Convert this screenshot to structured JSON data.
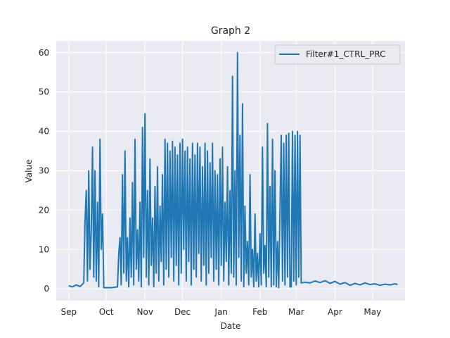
{
  "chart_data": {
    "type": "line",
    "title": "Graph 2",
    "xlabel": "Date",
    "ylabel": "Value",
    "x_tick_labels": [
      "Sep",
      "Oct",
      "Nov",
      "Dec",
      "Jan",
      "Feb",
      "Mar",
      "Apr",
      "May"
    ],
    "x_ticks": [
      "2023-09-01",
      "2023-10-01",
      "2023-11-01",
      "2023-12-01",
      "2024-01-01",
      "2024-02-01",
      "2024-03-01",
      "2024-04-01",
      "2024-05-01"
    ],
    "xlim": [
      "2023-08-22",
      "2024-05-27"
    ],
    "ylim": [
      -3,
      63
    ],
    "y_ticks": [
      0,
      10,
      20,
      30,
      40,
      50,
      60
    ],
    "grid": true,
    "legend_position": "upper right",
    "series": [
      {
        "name": "Filter#1_CTRL_PRC",
        "color": "#1f77b4",
        "points": [
          [
            "2023-09-01",
            0.8
          ],
          [
            "2023-09-04",
            0.5
          ],
          [
            "2023-09-07",
            1.0
          ],
          [
            "2023-09-10",
            0.6
          ],
          [
            "2023-09-13",
            1.5
          ],
          [
            "2023-09-14",
            17
          ],
          [
            "2023-09-15",
            25
          ],
          [
            "2023-09-16",
            2
          ],
          [
            "2023-09-17",
            30
          ],
          [
            "2023-09-18",
            5
          ],
          [
            "2023-09-19",
            15
          ],
          [
            "2023-09-20",
            36
          ],
          [
            "2023-09-21",
            3
          ],
          [
            "2023-09-22",
            30
          ],
          [
            "2023-09-23",
            2
          ],
          [
            "2023-09-24",
            22
          ],
          [
            "2023-09-25",
            0.5
          ],
          [
            "2023-09-26",
            38
          ],
          [
            "2023-09-27",
            10
          ],
          [
            "2023-09-28",
            19
          ],
          [
            "2023-09-29",
            0.3
          ],
          [
            "2023-10-05",
            0.3
          ],
          [
            "2023-10-10",
            0.5
          ],
          [
            "2023-10-11",
            9
          ],
          [
            "2023-10-12",
            13
          ],
          [
            "2023-10-13",
            1
          ],
          [
            "2023-10-14",
            29
          ],
          [
            "2023-10-15",
            4
          ],
          [
            "2023-10-16",
            35
          ],
          [
            "2023-10-17",
            2
          ],
          [
            "2023-10-18",
            13
          ],
          [
            "2023-10-19",
            0.5
          ],
          [
            "2023-10-20",
            18
          ],
          [
            "2023-10-21",
            3
          ],
          [
            "2023-10-22",
            27
          ],
          [
            "2023-10-23",
            1
          ],
          [
            "2023-10-24",
            38
          ],
          [
            "2023-10-25",
            5
          ],
          [
            "2023-10-26",
            15
          ],
          [
            "2023-10-27",
            2
          ],
          [
            "2023-10-28",
            22
          ],
          [
            "2023-10-29",
            0.5
          ],
          [
            "2023-10-30",
            41
          ],
          [
            "2023-10-31",
            8
          ],
          [
            "2023-11-01",
            44.5
          ],
          [
            "2023-11-02",
            3
          ],
          [
            "2023-11-03",
            25
          ],
          [
            "2023-11-04",
            1
          ],
          [
            "2023-11-05",
            33
          ],
          [
            "2023-11-06",
            6
          ],
          [
            "2023-11-07",
            18
          ],
          [
            "2023-11-08",
            0.5
          ],
          [
            "2023-11-09",
            26
          ],
          [
            "2023-11-10",
            4
          ],
          [
            "2023-11-11",
            31
          ],
          [
            "2023-11-12",
            2
          ],
          [
            "2023-11-13",
            21
          ],
          [
            "2023-11-14",
            7
          ],
          [
            "2023-11-15",
            29
          ],
          [
            "2023-11-16",
            1
          ],
          [
            "2023-11-17",
            38
          ],
          [
            "2023-11-18",
            5
          ],
          [
            "2023-11-19",
            37
          ],
          [
            "2023-11-20",
            3
          ],
          [
            "2023-11-21",
            35
          ],
          [
            "2023-11-22",
            8
          ],
          [
            "2023-11-23",
            37.5
          ],
          [
            "2023-11-24",
            2
          ],
          [
            "2023-11-25",
            36
          ],
          [
            "2023-11-26",
            6
          ],
          [
            "2023-11-27",
            34
          ],
          [
            "2023-11-28",
            1
          ],
          [
            "2023-11-29",
            37
          ],
          [
            "2023-11-30",
            4
          ],
          [
            "2023-12-01",
            38
          ],
          [
            "2023-12-02",
            10
          ],
          [
            "2023-12-03",
            35
          ],
          [
            "2023-12-04",
            2
          ],
          [
            "2023-12-05",
            36
          ],
          [
            "2023-12-06",
            7
          ],
          [
            "2023-12-07",
            33
          ],
          [
            "2023-12-08",
            1
          ],
          [
            "2023-12-09",
            37
          ],
          [
            "2023-12-10",
            5
          ],
          [
            "2023-12-11",
            34
          ],
          [
            "2023-12-12",
            3
          ],
          [
            "2023-12-13",
            37
          ],
          [
            "2023-12-14",
            9
          ],
          [
            "2023-12-15",
            36
          ],
          [
            "2023-12-16",
            2
          ],
          [
            "2023-12-17",
            31
          ],
          [
            "2023-12-18",
            6
          ],
          [
            "2023-12-19",
            37
          ],
          [
            "2023-12-20",
            1
          ],
          [
            "2023-12-21",
            35
          ],
          [
            "2023-12-22",
            4
          ],
          [
            "2023-12-23",
            32
          ],
          [
            "2023-12-24",
            8
          ],
          [
            "2023-12-25",
            37
          ],
          [
            "2023-12-26",
            2
          ],
          [
            "2023-12-27",
            30
          ],
          [
            "2023-12-28",
            5
          ],
          [
            "2023-12-29",
            29
          ],
          [
            "2023-12-30",
            1
          ],
          [
            "2023-12-31",
            33
          ],
          [
            "2024-01-01",
            6
          ],
          [
            "2024-01-02",
            36
          ],
          [
            "2024-01-03",
            2
          ],
          [
            "2024-01-04",
            22
          ],
          [
            "2024-01-05",
            7
          ],
          [
            "2024-01-06",
            31
          ],
          [
            "2024-01-07",
            1
          ],
          [
            "2024-01-08",
            25
          ],
          [
            "2024-01-09",
            4
          ],
          [
            "2024-01-10",
            54
          ],
          [
            "2024-01-11",
            3
          ],
          [
            "2024-01-12",
            30
          ],
          [
            "2024-01-13",
            1
          ],
          [
            "2024-01-14",
            60
          ],
          [
            "2024-01-15",
            8
          ],
          [
            "2024-01-16",
            39
          ],
          [
            "2024-01-17",
            2
          ],
          [
            "2024-01-18",
            47
          ],
          [
            "2024-01-19",
            0.5
          ],
          [
            "2024-01-20",
            21
          ],
          [
            "2024-01-21",
            4
          ],
          [
            "2024-01-22",
            12
          ],
          [
            "2024-01-23",
            1
          ],
          [
            "2024-01-24",
            29
          ],
          [
            "2024-01-25",
            3
          ],
          [
            "2024-01-26",
            10
          ],
          [
            "2024-01-27",
            0.5
          ],
          [
            "2024-01-28",
            19
          ],
          [
            "2024-01-29",
            2
          ],
          [
            "2024-01-30",
            9
          ],
          [
            "2024-01-31",
            0.5
          ],
          [
            "2024-02-01",
            14
          ],
          [
            "2024-02-02",
            1
          ],
          [
            "2024-02-03",
            36
          ],
          [
            "2024-02-04",
            4
          ],
          [
            "2024-02-05",
            11
          ],
          [
            "2024-02-06",
            0.5
          ],
          [
            "2024-02-07",
            42
          ],
          [
            "2024-02-08",
            3
          ],
          [
            "2024-02-09",
            26
          ],
          [
            "2024-02-10",
            0.5
          ],
          [
            "2024-02-11",
            38
          ],
          [
            "2024-02-12",
            1
          ],
          [
            "2024-02-13",
            30
          ],
          [
            "2024-02-14",
            0.5
          ],
          [
            "2024-02-15",
            12
          ],
          [
            "2024-02-16",
            0.3
          ],
          [
            "2024-02-18",
            39
          ],
          [
            "2024-02-19",
            2
          ],
          [
            "2024-02-20",
            37
          ],
          [
            "2024-02-21",
            1
          ],
          [
            "2024-02-22",
            39
          ],
          [
            "2024-02-23",
            3
          ],
          [
            "2024-02-24",
            39.5
          ],
          [
            "2024-02-25",
            0.5
          ],
          [
            "2024-02-26",
            0.5
          ],
          [
            "2024-02-27",
            40
          ],
          [
            "2024-02-28",
            2
          ],
          [
            "2024-02-29",
            39
          ],
          [
            "2024-03-01",
            1
          ],
          [
            "2024-03-02",
            40
          ],
          [
            "2024-03-03",
            3
          ],
          [
            "2024-03-04",
            39
          ],
          [
            "2024-03-05",
            1.5
          ],
          [
            "2024-03-08",
            1.7
          ],
          [
            "2024-03-12",
            1.5
          ],
          [
            "2024-03-16",
            2.0
          ],
          [
            "2024-03-20",
            1.6
          ],
          [
            "2024-03-24",
            2.1
          ],
          [
            "2024-03-28",
            1.4
          ],
          [
            "2024-04-01",
            1.9
          ],
          [
            "2024-04-05",
            1.2
          ],
          [
            "2024-04-09",
            1.6
          ],
          [
            "2024-04-13",
            0.9
          ],
          [
            "2024-04-17",
            1.4
          ],
          [
            "2024-04-21",
            1.0
          ],
          [
            "2024-04-25",
            1.5
          ],
          [
            "2024-04-29",
            1.1
          ],
          [
            "2024-05-03",
            1.3
          ],
          [
            "2024-05-07",
            0.9
          ],
          [
            "2024-05-11",
            1.2
          ],
          [
            "2024-05-15",
            1.0
          ],
          [
            "2024-05-19",
            1.3
          ],
          [
            "2024-05-21",
            1.1
          ]
        ]
      }
    ]
  }
}
